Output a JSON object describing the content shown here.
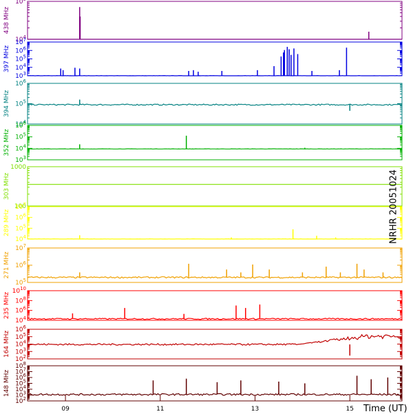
{
  "station_label": "NRHR 20051024",
  "chart_data": {
    "type": "line",
    "xlabel": "Time (UT)",
    "x_ticks": [
      "09",
      "11",
      "13",
      "15"
    ],
    "x_tick_hours": [
      9,
      11,
      13,
      15
    ],
    "xlim_hours": [
      8.2,
      16.1
    ],
    "panels": [
      {
        "name": "438 MHz",
        "color": "#800080",
        "log": true,
        "ytick_labels": [
          "10^4",
          "10^5"
        ],
        "ylim_exp": [
          4,
          5
        ],
        "baseline_exp": 4.0,
        "noise_exp": 0.0,
        "spikes": [
          {
            "hour": 9.3,
            "exp": 4.85
          },
          {
            "hour": 9.31,
            "exp": 4.6
          },
          {
            "hour": 15.4,
            "exp": 4.2
          }
        ]
      },
      {
        "name": "397 MHz",
        "color": "#0000e0",
        "log": true,
        "ytick_labels": [
          "10^3",
          "10^4",
          "10^5",
          "10^6",
          "10^7"
        ],
        "ylim_exp": [
          3,
          7.2
        ],
        "baseline_exp": 3.0,
        "noise_exp": 0.03,
        "spikes": [
          {
            "hour": 8.9,
            "exp": 3.9
          },
          {
            "hour": 8.95,
            "exp": 3.7
          },
          {
            "hour": 9.2,
            "exp": 4.0
          },
          {
            "hour": 9.3,
            "exp": 3.9
          },
          {
            "hour": 11.6,
            "exp": 3.6
          },
          {
            "hour": 11.7,
            "exp": 3.7
          },
          {
            "hour": 11.8,
            "exp": 3.5
          },
          {
            "hour": 12.3,
            "exp": 3.6
          },
          {
            "hour": 13.05,
            "exp": 3.7
          },
          {
            "hour": 13.4,
            "exp": 4.2
          },
          {
            "hour": 13.55,
            "exp": 5.4
          },
          {
            "hour": 13.6,
            "exp": 5.9
          },
          {
            "hour": 13.62,
            "exp": 6.2
          },
          {
            "hour": 13.68,
            "exp": 6.6
          },
          {
            "hour": 13.72,
            "exp": 6.3
          },
          {
            "hour": 13.76,
            "exp": 5.6
          },
          {
            "hour": 13.82,
            "exp": 6.4
          },
          {
            "hour": 13.9,
            "exp": 5.7
          },
          {
            "hour": 14.2,
            "exp": 3.6
          },
          {
            "hour": 14.78,
            "exp": 3.7
          },
          {
            "hour": 14.93,
            "exp": 6.5
          }
        ]
      },
      {
        "name": "394 MHz",
        "color": "#008080",
        "log": true,
        "ytick_labels": [
          "10^4",
          "10^5",
          "10^6"
        ],
        "ylim_exp": [
          4,
          6
        ],
        "baseline_exp": 4.95,
        "noise_exp": 0.03,
        "spikes": [
          {
            "hour": 9.3,
            "exp": 5.2
          },
          {
            "hour": 15.0,
            "exp": 4.65
          }
        ]
      },
      {
        "name": "352 MHz",
        "color": "#00b000",
        "log": true,
        "ytick_labels": [
          "10^3",
          "10^4",
          "10^5",
          "10^6"
        ],
        "ylim_exp": [
          3,
          6
        ],
        "baseline_exp": 3.95,
        "noise_exp": 0.01,
        "spikes": [
          {
            "hour": 9.3,
            "exp": 4.35
          },
          {
            "hour": 11.55,
            "exp": 5.1
          },
          {
            "hour": 14.05,
            "exp": 4.05
          }
        ]
      },
      {
        "name": "303 MHz",
        "color": "#80e000",
        "log": true,
        "ytick_labels": [
          "100",
          "1000"
        ],
        "ylim_exp": [
          2,
          3
        ],
        "baseline_exp": 2.55,
        "noise_exp": 0.0,
        "spikes": []
      },
      {
        "name": "289 MHz",
        "color": "#ffff00",
        "log": true,
        "ytick_labels": [
          "10^4",
          "10^5",
          "10^6",
          "10^7"
        ],
        "ylim_exp": [
          4,
          7
        ],
        "baseline_exp": 4.0,
        "noise_exp": 0.02,
        "spikes": [
          {
            "hour": 9.3,
            "exp": 4.35
          },
          {
            "hour": 12.5,
            "exp": 4.15
          },
          {
            "hour": 13.8,
            "exp": 4.9
          },
          {
            "hour": 14.3,
            "exp": 4.3
          },
          {
            "hour": 14.7,
            "exp": 4.15
          }
        ]
      },
      {
        "name": "271 MHz",
        "color": "#f0a000",
        "log": true,
        "ytick_labels": [
          "10^5",
          "10^6",
          "10^7"
        ],
        "ylim_exp": [
          4.6,
          7
        ],
        "baseline_exp": 4.95,
        "noise_exp": 0.05,
        "spikes": [
          {
            "hour": 9.3,
            "exp": 5.3
          },
          {
            "hour": 11.6,
            "exp": 5.9
          },
          {
            "hour": 12.4,
            "exp": 5.5
          },
          {
            "hour": 12.7,
            "exp": 5.3
          },
          {
            "hour": 12.95,
            "exp": 5.85
          },
          {
            "hour": 13.3,
            "exp": 5.5
          },
          {
            "hour": 14.0,
            "exp": 5.3
          },
          {
            "hour": 14.5,
            "exp": 5.7
          },
          {
            "hour": 14.8,
            "exp": 5.3
          },
          {
            "hour": 15.15,
            "exp": 5.9
          },
          {
            "hour": 15.3,
            "exp": 5.5
          },
          {
            "hour": 15.7,
            "exp": 5.3
          }
        ]
      },
      {
        "name": "235 MHz",
        "color": "#ff0000",
        "log": true,
        "ytick_labels": [
          "10^4",
          "10^6",
          "10^8",
          "10^10"
        ],
        "ylim_exp": [
          4,
          10
        ],
        "baseline_exp": 4.3,
        "noise_exp": 0.12,
        "spikes": [
          {
            "hour": 9.15,
            "exp": 5.4
          },
          {
            "hour": 10.25,
            "exp": 6.5
          },
          {
            "hour": 11.5,
            "exp": 5.3
          },
          {
            "hour": 12.6,
            "exp": 7.0
          },
          {
            "hour": 12.8,
            "exp": 6.5
          },
          {
            "hour": 13.1,
            "exp": 7.2
          }
        ]
      },
      {
        "name": "164 MHz",
        "color": "#c00000",
        "log": true,
        "ytick_labels": [
          "10^2",
          "10^3",
          "10^4",
          "10^5",
          "10^6"
        ],
        "ylim_exp": [
          2,
          6.5
        ],
        "baseline_exp": 4.2,
        "noise_exp": 0.12,
        "spikes": [
          {
            "hour": 15.0,
            "exp": 2.5
          }
        ]
      },
      {
        "name": "148 MHz",
        "color": "#600000",
        "log": true,
        "ytick_labels": [
          "10^2",
          "10^3",
          "10^4",
          "10^5",
          "10^6",
          "10^7",
          "10^8"
        ],
        "ylim_exp": [
          2,
          8
        ],
        "baseline_exp": 3.1,
        "noise_exp": 0.15,
        "spikes": [
          {
            "hour": 10.85,
            "exp": 5.5
          },
          {
            "hour": 11.55,
            "exp": 5.8
          },
          {
            "hour": 12.2,
            "exp": 5.2
          },
          {
            "hour": 12.7,
            "exp": 5.5
          },
          {
            "hour": 13.5,
            "exp": 5.3
          },
          {
            "hour": 14.05,
            "exp": 5.0
          },
          {
            "hour": 15.15,
            "exp": 6.3
          },
          {
            "hour": 15.45,
            "exp": 5.7
          },
          {
            "hour": 15.8,
            "exp": 6.0
          }
        ]
      }
    ]
  }
}
